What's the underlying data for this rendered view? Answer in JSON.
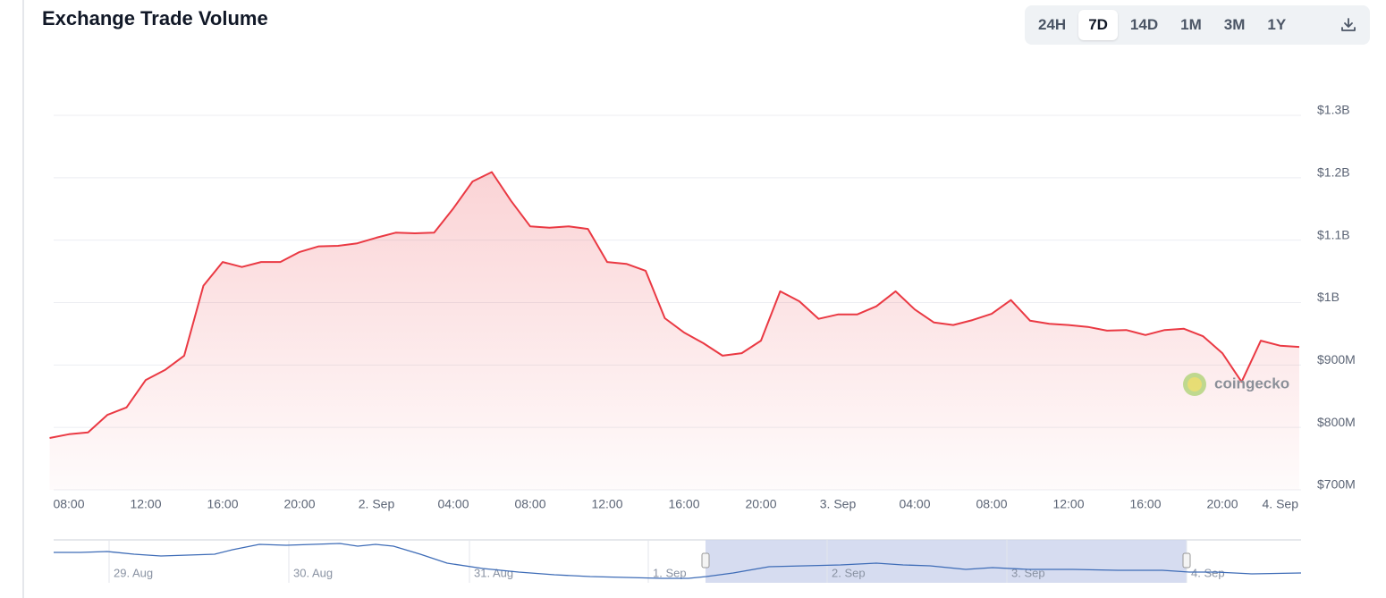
{
  "chart_data": {
    "type": "line",
    "title": "Exchange Trade Volume",
    "categories": [
      null,
      "08:00",
      null,
      null,
      null,
      "12:00",
      null,
      null,
      null,
      "16:00",
      null,
      null,
      null,
      "20:00",
      null,
      null,
      null,
      "2. Sep",
      null,
      null,
      null,
      "04:00",
      null,
      null,
      null,
      "08:00",
      null,
      null,
      null,
      "12:00",
      null,
      null,
      null,
      "16:00",
      null,
      null,
      null,
      "20:00",
      null,
      null,
      null,
      "3. Sep",
      null,
      null,
      null,
      "04:00",
      null,
      null,
      null,
      "08:00",
      null,
      null,
      null,
      "12:00",
      null,
      null,
      null,
      "16:00",
      null,
      null,
      null,
      "20:00",
      null,
      null,
      null,
      "4. Sep"
    ],
    "series": [
      {
        "name": "Exchange Trade Volume",
        "color": "#ea3943",
        "values": [
          783000000,
          789000000,
          792000000,
          820000000,
          832000000,
          876000000,
          892000000,
          915000000,
          1027000000,
          1065000000,
          1057000000,
          1065000000,
          1065000000,
          1081000000,
          1090000000,
          1091000000,
          1095000000,
          1104000000,
          1112000000,
          1111000000,
          1112000000,
          1151000000,
          1194000000,
          1209000000,
          1163000000,
          1122000000,
          1120000000,
          1122000000,
          1118000000,
          1065000000,
          1062000000,
          1051000000,
          975000000,
          952000000,
          935000000,
          915000000,
          919000000,
          939000000,
          1018000000,
          1002000000,
          974000000,
          981000000,
          981000000,
          994000000,
          1018000000,
          989000000,
          968000000,
          964000000,
          972000000,
          982000000,
          1004000000,
          971000000,
          966000000,
          964000000,
          961000000,
          955000000,
          956000000,
          948000000,
          956000000,
          958000000,
          946000000,
          919000000,
          873000000,
          939000000,
          931000000,
          929000000
        ]
      }
    ],
    "ylim": [
      700000000,
      1300000000
    ],
    "yticks": [
      {
        "value": 700000000,
        "label": "$700M"
      },
      {
        "value": 800000000,
        "label": "$800M"
      },
      {
        "value": 900000000,
        "label": "$900M"
      },
      {
        "value": 1000000000,
        "label": "$1B"
      },
      {
        "value": 1100000000,
        "label": "$1.1B"
      },
      {
        "value": 1200000000,
        "label": "$1.2B"
      },
      {
        "value": 1300000000,
        "label": "$1.3B"
      }
    ],
    "grid": true
  },
  "controls": {
    "ranges": [
      "24H",
      "7D",
      "14D",
      "1M",
      "3M",
      "1Y"
    ],
    "selected": "7D"
  },
  "watermark": "coingecko",
  "navigator": {
    "labels": [
      "29. Aug",
      "30. Aug",
      "31. Aug",
      "1. Sep",
      "2. Sep",
      "3. Sep",
      "4. Sep"
    ]
  }
}
